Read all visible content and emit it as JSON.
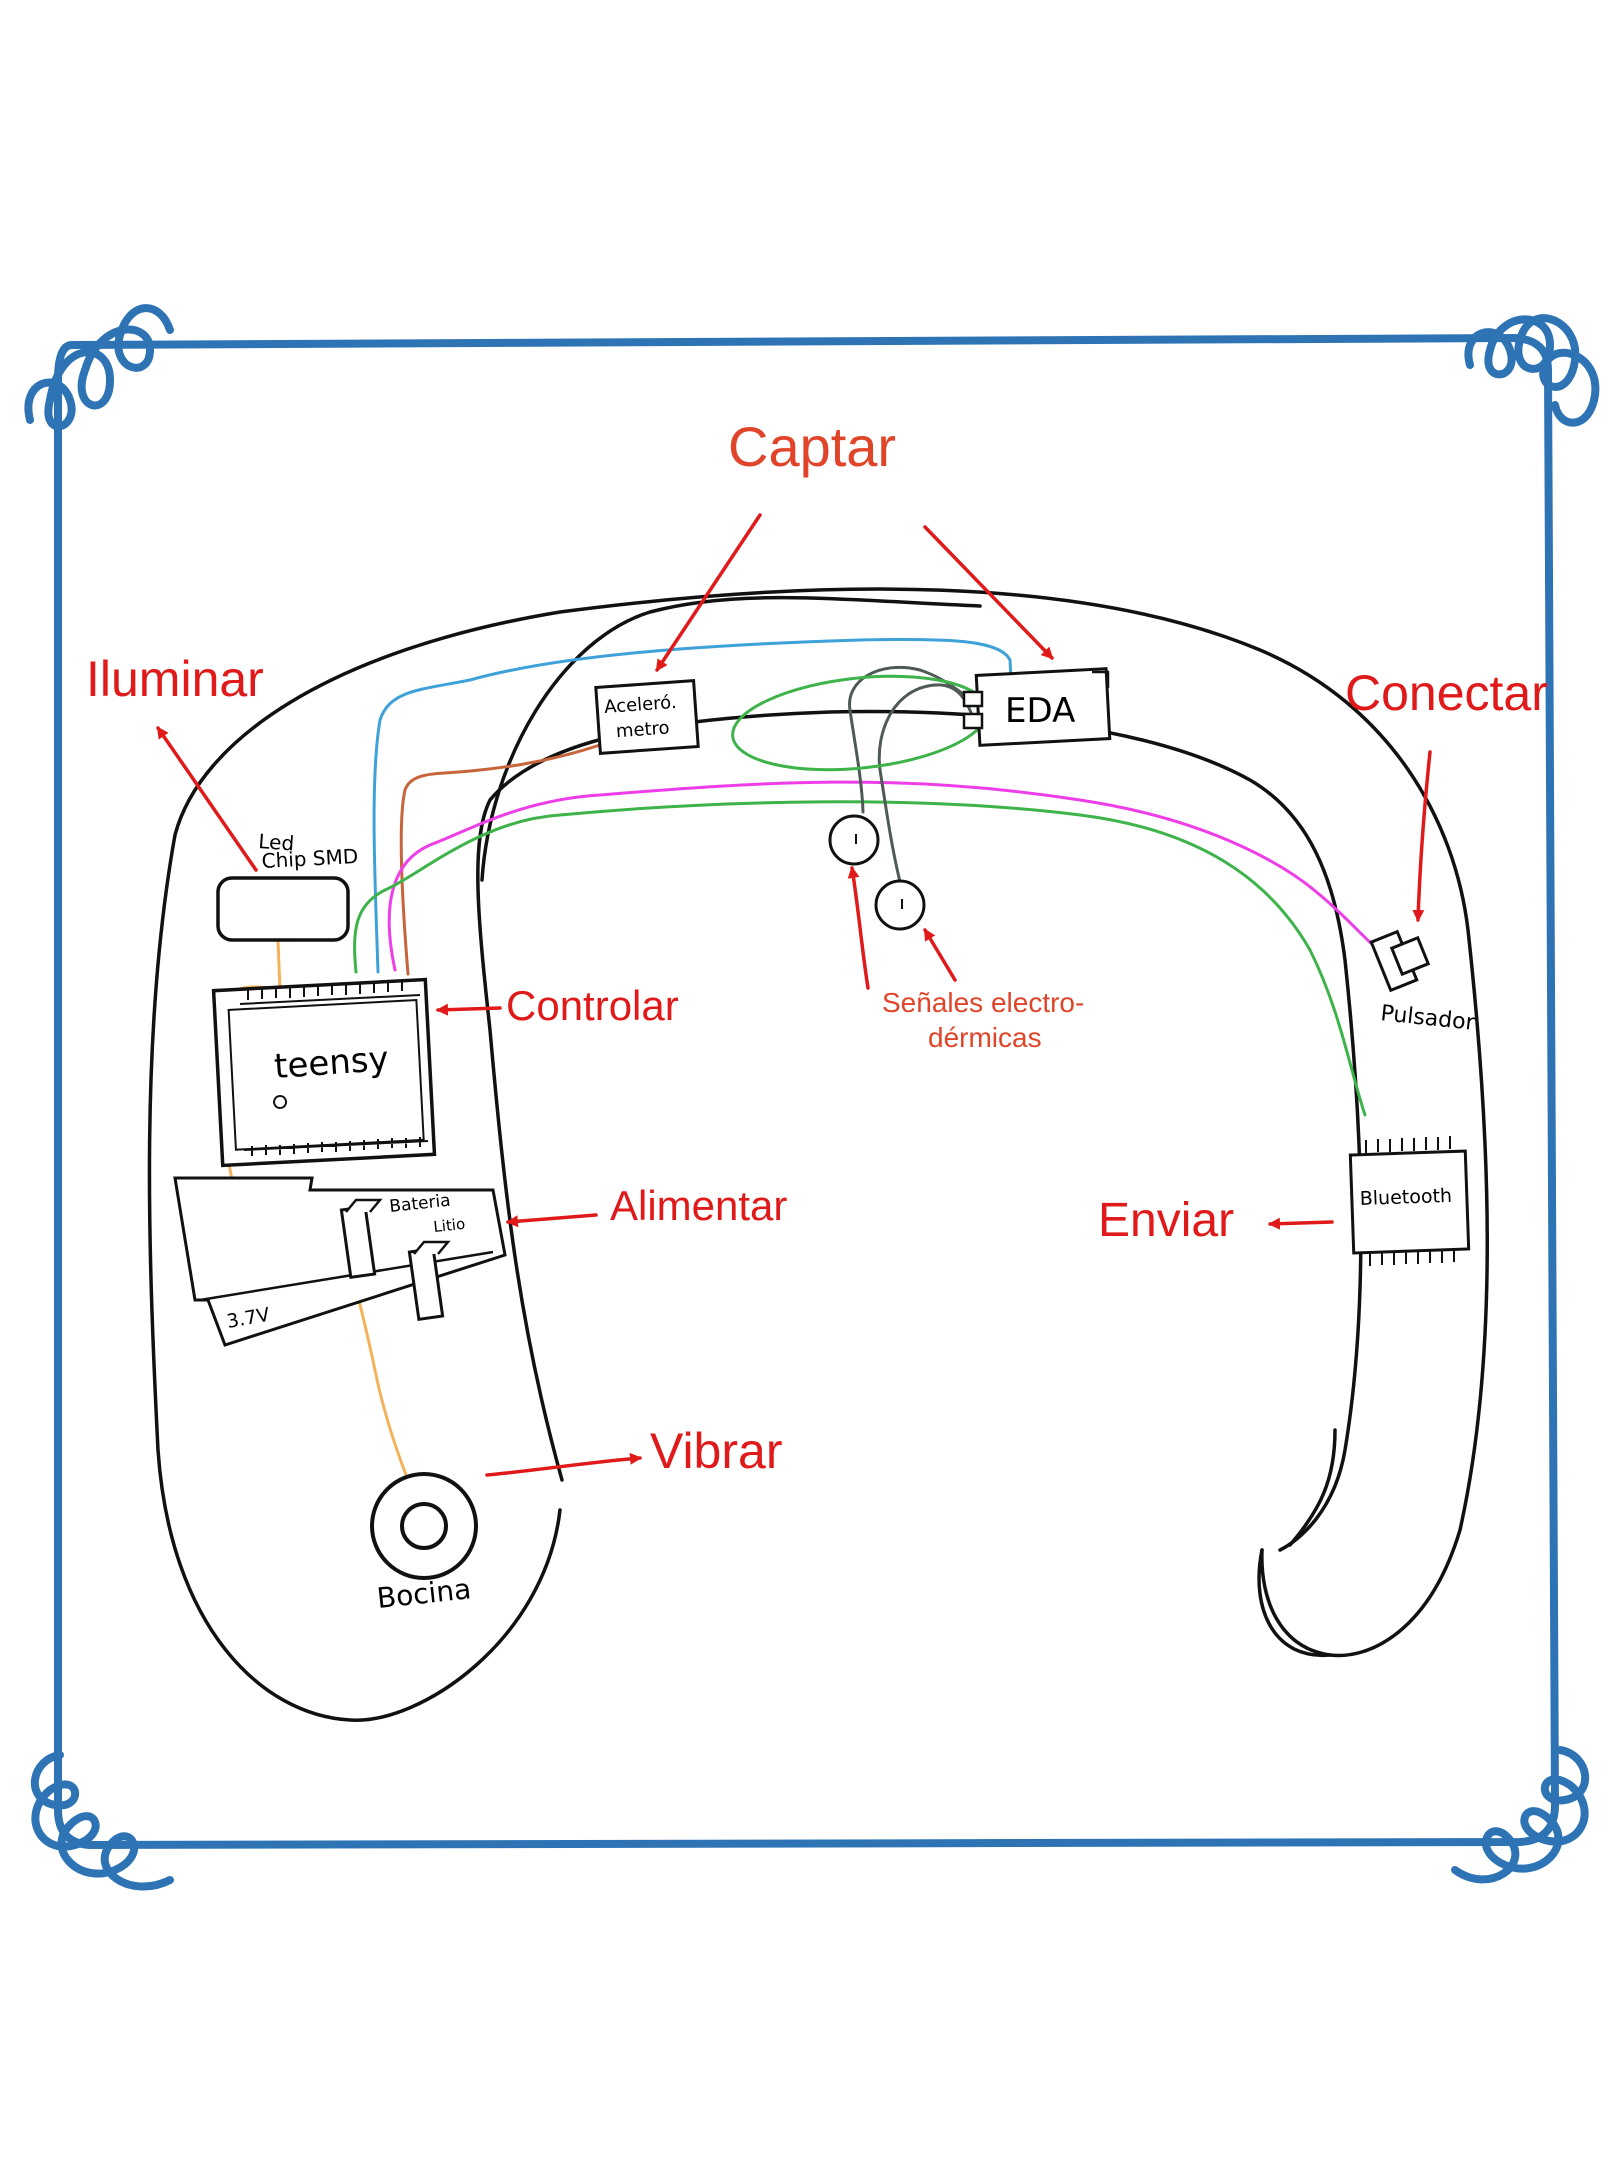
{
  "labels": {
    "captar": "Captar",
    "iluminar": "Iluminar",
    "conectar": "Conectar",
    "controlar": "Controlar",
    "alimentar": "Alimentar",
    "vibrar": "Vibrar",
    "enviar": "Enviar",
    "senales_line1": "Señales electro-",
    "senales_line2": "dérmicas"
  },
  "components": {
    "acelerometro_line1": "Aceleró.",
    "acelerometro_line2": "metro",
    "eda": "EDA",
    "led_line1": "Led",
    "led_line2": "Chip SMD",
    "teensy": "teensy",
    "bateria_line1": "Bateria",
    "bateria_line2": "Litio",
    "voltage": "3.7V",
    "bocina": "Bocina",
    "pulsador": "Pulsador",
    "bluetooth": "Bluetooth"
  },
  "colors": {
    "frame": "#2e74b5",
    "label": "#e01a1a",
    "label_title": "#e0452a",
    "wire_blue": "#3ea2d9",
    "wire_brown": "#c8643c",
    "wire_magenta": "#ee3ee8",
    "wire_green": "#3db34a",
    "wire_orange": "#f4b35a",
    "wire_grey": "#4f5a55"
  }
}
